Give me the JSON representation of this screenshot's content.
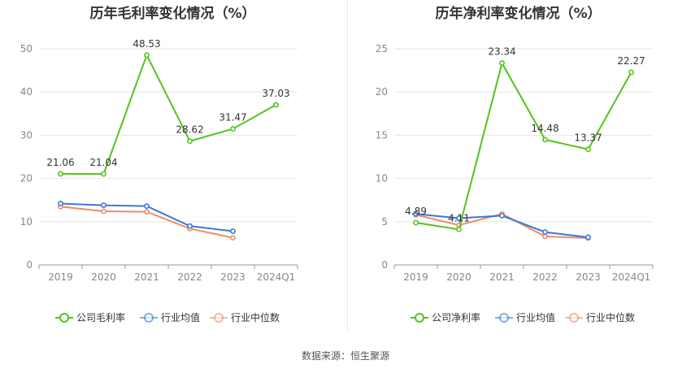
{
  "source": "数据来源：恒生聚源",
  "chart_data": [
    {
      "type": "line",
      "title": "历年毛利率变化情况（%）",
      "categories": [
        "2019",
        "2020",
        "2021",
        "2022",
        "2023",
        "2024Q1"
      ],
      "ylim": [
        0,
        50
      ],
      "yticks": [
        0,
        10,
        20,
        30,
        40,
        50
      ],
      "grid": true,
      "legend_position": "bottom",
      "series": [
        {
          "name": "公司毛利率",
          "color": "#52c41a",
          "values": [
            21.06,
            21.04,
            48.53,
            28.62,
            31.47,
            37.03
          ],
          "labels": [
            "21.06",
            "21.04",
            "48.53",
            "28.62",
            "31.47",
            "37.03"
          ]
        },
        {
          "name": "行业均值",
          "color": "#3a78d8",
          "values": [
            14.2,
            13.8,
            13.6,
            9.0,
            7.8,
            null
          ]
        },
        {
          "name": "行业中位数",
          "color": "#f08a66",
          "values": [
            13.5,
            12.4,
            12.3,
            8.4,
            6.3,
            null
          ]
        }
      ]
    },
    {
      "type": "line",
      "title": "历年净利率变化情况（%）",
      "categories": [
        "2019",
        "2020",
        "2021",
        "2022",
        "2023",
        "2024Q1"
      ],
      "ylim": [
        0,
        25
      ],
      "yticks": [
        0,
        5,
        10,
        15,
        20,
        25
      ],
      "grid": true,
      "legend_position": "bottom",
      "series": [
        {
          "name": "公司净利率",
          "color": "#52c41a",
          "values": [
            4.89,
            4.11,
            23.34,
            14.48,
            13.37,
            22.27
          ],
          "labels": [
            "4.89",
            "4.11",
            "23.34",
            "14.48",
            "13.37",
            "22.27"
          ]
        },
        {
          "name": "行业均值",
          "color": "#3a78d8",
          "values": [
            5.9,
            5.4,
            5.7,
            3.8,
            3.2,
            null
          ]
        },
        {
          "name": "行业中位数",
          "color": "#f08a66",
          "values": [
            5.8,
            4.6,
            5.9,
            3.3,
            3.1,
            null
          ]
        }
      ]
    }
  ]
}
